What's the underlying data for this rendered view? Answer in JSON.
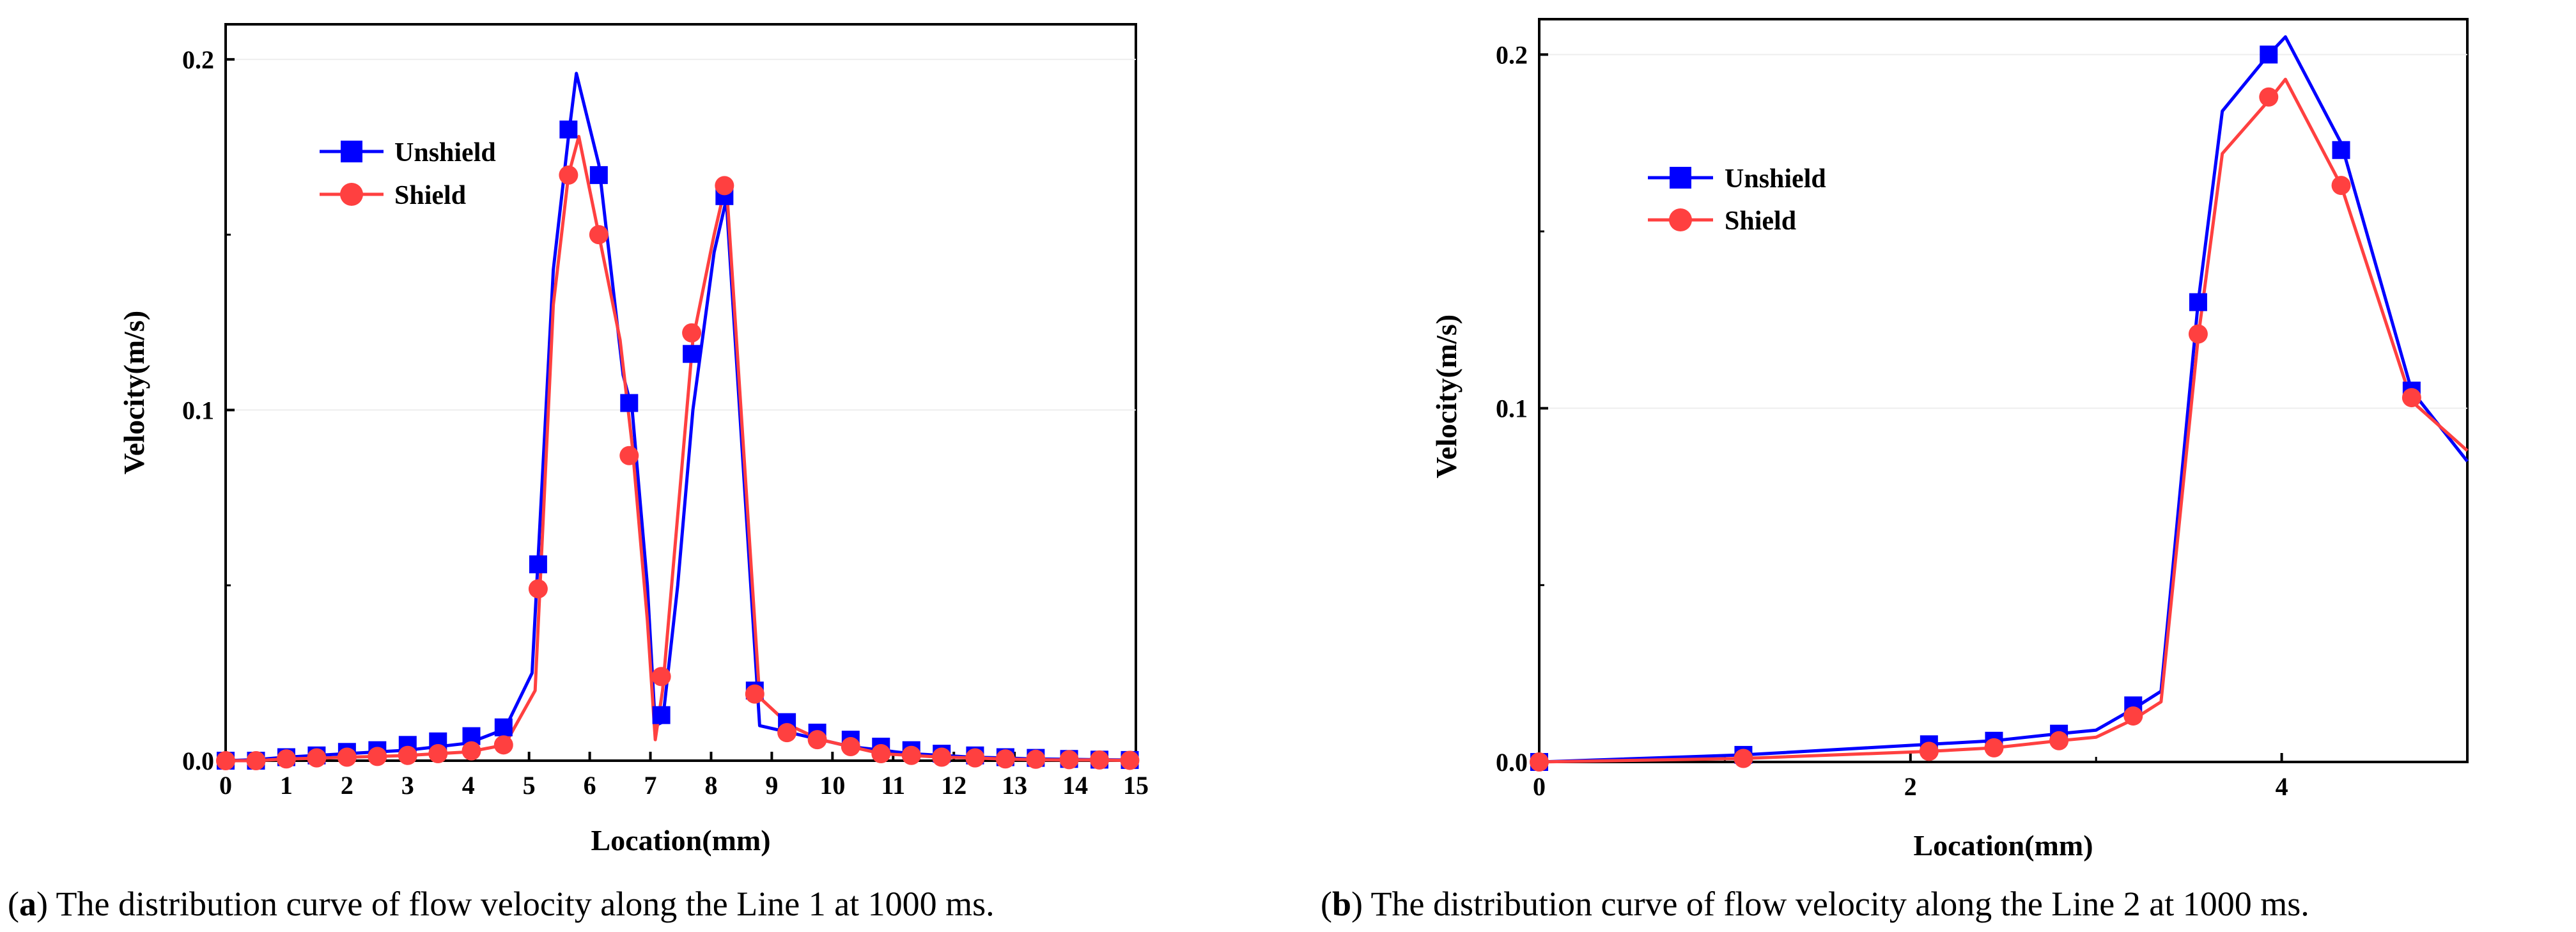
{
  "chart_data": [
    {
      "type": "line",
      "panel": "a",
      "caption_letter": "a",
      "caption_text": "The distribution curve of flow velocity along the Line 1 at 1000 ms.",
      "xlabel": "Location(mm)",
      "ylabel": "Velocity(m/s)",
      "xlim": [
        0,
        15
      ],
      "ylim": [
        0,
        0.21
      ],
      "xticks": [
        0,
        1,
        2,
        3,
        4,
        5,
        6,
        7,
        8,
        9,
        10,
        11,
        12,
        13,
        14,
        15
      ],
      "xtick_labels": [
        "0",
        "1",
        "2",
        "3",
        "4",
        "5",
        "6",
        "7",
        "8",
        "9",
        "10",
        "11",
        "12",
        "13",
        "14",
        "15"
      ],
      "yticks": [
        0,
        0.1,
        0.2
      ],
      "ytick_labels": [
        "0.0",
        "0.1",
        "0.2"
      ],
      "legend": "upper-left",
      "series": [
        {
          "name": "Unshield",
          "color": "#0000ff",
          "marker": "square",
          "line_x": [
            0,
            0.5,
            1,
            1.5,
            2,
            2.5,
            3,
            3.5,
            4,
            4.6,
            5.05,
            5.4,
            5.65,
            5.78,
            6.15,
            6.55,
            6.7,
            6.95,
            7.08,
            7.2,
            7.45,
            7.7,
            8.05,
            8.25,
            8.8,
            9.3,
            9.8,
            10.3,
            10.8,
            11.3,
            11.8,
            12.3,
            12.8,
            13.3,
            13.8,
            14.3,
            14.8,
            15
          ],
          "line_y": [
            0,
            0.0003,
            0.001,
            0.0015,
            0.002,
            0.0025,
            0.003,
            0.004,
            0.005,
            0.009,
            0.025,
            0.14,
            0.178,
            0.196,
            0.17,
            0.11,
            0.1,
            0.05,
            0.01,
            0.011,
            0.05,
            0.1,
            0.145,
            0.16,
            0.01,
            0.008,
            0.006,
            0.004,
            0.003,
            0.002,
            0.0015,
            0.001,
            0.0008,
            0.0005,
            0.0004,
            0.0003,
            0.0002,
            0.0002
          ],
          "marker_x": [
            0,
            0.5,
            1,
            1.5,
            2,
            2.5,
            3,
            3.5,
            4.05,
            4.58,
            5.15,
            5.65,
            6.15,
            6.65,
            7.18,
            7.68,
            8.22,
            8.72,
            9.25,
            9.75,
            10.3,
            10.8,
            11.3,
            11.8,
            12.35,
            12.85,
            13.35,
            13.9,
            14.4,
            14.9
          ],
          "marker_y": [
            0,
            0,
            0.001,
            0.0015,
            0.0025,
            0.003,
            0.0045,
            0.0055,
            0.007,
            0.0095,
            0.056,
            0.18,
            0.167,
            0.102,
            0.013,
            0.116,
            0.161,
            0.02,
            0.011,
            0.008,
            0.006,
            0.004,
            0.003,
            0.002,
            0.0015,
            0.001,
            0.0008,
            0.0005,
            0.0003,
            0.0002
          ]
        },
        {
          "name": "Shield",
          "color": "#ff4040",
          "marker": "circle",
          "line_x": [
            0,
            0.5,
            1,
            1.5,
            2,
            2.5,
            3,
            3.5,
            4,
            4.6,
            5.1,
            5.4,
            5.65,
            5.82,
            6.15,
            6.5,
            6.7,
            6.95,
            7.08,
            7.2,
            7.45,
            7.7,
            8.05,
            8.25,
            8.8,
            9.3,
            9.8,
            10.3,
            10.8,
            11.3,
            11.8,
            12.3,
            12.8,
            13.3,
            13.8,
            14.3,
            14.8,
            15
          ],
          "line_y": [
            0,
            0,
            0.0005,
            0.0007,
            0.001,
            0.0012,
            0.0015,
            0.002,
            0.0025,
            0.0045,
            0.02,
            0.13,
            0.167,
            0.178,
            0.15,
            0.12,
            0.09,
            0.04,
            0.006,
            0.02,
            0.07,
            0.12,
            0.15,
            0.165,
            0.018,
            0.01,
            0.006,
            0.004,
            0.002,
            0.0015,
            0.001,
            0.0008,
            0.0005,
            0.0003,
            0.0002,
            0.0002,
            0.0001,
            0.0001
          ],
          "marker_x": [
            0,
            0.5,
            1,
            1.5,
            2,
            2.5,
            3,
            3.5,
            4.05,
            4.58,
            5.15,
            5.65,
            6.15,
            6.65,
            7.18,
            7.68,
            8.22,
            8.72,
            9.25,
            9.75,
            10.3,
            10.8,
            11.3,
            11.8,
            12.35,
            12.85,
            13.35,
            13.9,
            14.4,
            14.9
          ],
          "marker_y": [
            0,
            0,
            0.0005,
            0.0008,
            0.001,
            0.0012,
            0.0015,
            0.002,
            0.0028,
            0.0045,
            0.049,
            0.167,
            0.15,
            0.087,
            0.024,
            0.122,
            0.164,
            0.019,
            0.008,
            0.006,
            0.004,
            0.002,
            0.0015,
            0.001,
            0.0008,
            0.0005,
            0.0004,
            0.0003,
            0.0002,
            0.0001
          ]
        }
      ]
    },
    {
      "type": "line",
      "panel": "b",
      "caption_letter": "b",
      "caption_text": "The distribution curve of flow velocity along the Line 2 at 1000 ms.",
      "xlabel": "Location(mm)",
      "ylabel": "Velocity(m/s)",
      "xlim": [
        0,
        5
      ],
      "ylim": [
        0,
        0.21
      ],
      "xticks": [
        0,
        2,
        4
      ],
      "xtick_labels": [
        "0",
        "2",
        "4"
      ],
      "yticks": [
        0,
        0.1,
        0.2
      ],
      "ytick_labels": [
        "0.0",
        "0.1",
        "0.2"
      ],
      "legend": "upper-left",
      "series": [
        {
          "name": "Unshield",
          "color": "#0000ff",
          "marker": "square",
          "line_x": [
            0,
            1.1,
            2.1,
            2.45,
            2.8,
            3.0,
            3.2,
            3.35,
            3.55,
            3.68,
            3.93,
            4.02,
            4.32,
            4.7,
            5.0
          ],
          "line_y": [
            0,
            0.002,
            0.005,
            0.006,
            0.008,
            0.009,
            0.015,
            0.02,
            0.13,
            0.184,
            0.2,
            0.205,
            0.175,
            0.105,
            0.085
          ],
          "marker_x": [
            0,
            1.1,
            2.1,
            2.45,
            2.8,
            3.2,
            3.55,
            3.93,
            4.32,
            4.7
          ],
          "marker_y": [
            0,
            0.002,
            0.005,
            0.006,
            0.008,
            0.016,
            0.13,
            0.2,
            0.173,
            0.105
          ]
        },
        {
          "name": "Shield",
          "color": "#ff4040",
          "marker": "circle",
          "line_x": [
            0,
            1.1,
            2.1,
            2.45,
            2.8,
            3.0,
            3.2,
            3.35,
            3.55,
            3.68,
            3.93,
            4.02,
            4.32,
            4.7,
            5.0
          ],
          "line_y": [
            0,
            0.001,
            0.003,
            0.004,
            0.006,
            0.007,
            0.012,
            0.017,
            0.12,
            0.172,
            0.187,
            0.193,
            0.163,
            0.102,
            0.088
          ],
          "marker_x": [
            0,
            1.1,
            2.1,
            2.45,
            2.8,
            3.2,
            3.55,
            3.93,
            4.32,
            4.7
          ],
          "marker_y": [
            0,
            0.001,
            0.003,
            0.004,
            0.006,
            0.013,
            0.121,
            0.188,
            0.163,
            0.103
          ]
        }
      ]
    }
  ]
}
